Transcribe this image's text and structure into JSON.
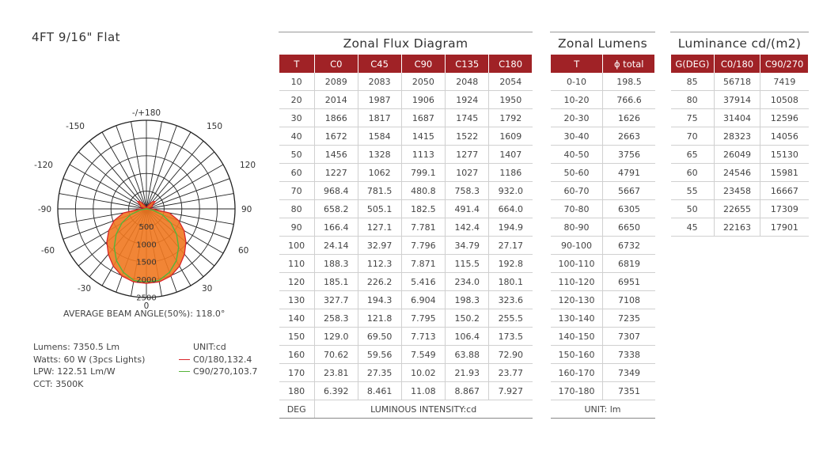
{
  "title": "4FT 9/16\" Flat",
  "chart_data": {
    "type": "polar",
    "ring_labels": [
      "500",
      "1000",
      "1500",
      "2000",
      "2500"
    ],
    "angle_labels": [
      "-/+180",
      "150",
      "-150",
      "120",
      "-120",
      "90",
      "-90",
      "60",
      "-60",
      "30",
      "-30",
      "0"
    ],
    "series": [
      {
        "name": "C0/180,132.4",
        "color": "#d9262b",
        "fill": "#f07820",
        "angles": [
          0,
          10,
          20,
          30,
          40,
          50,
          60,
          70,
          80,
          90,
          100,
          110,
          120,
          130,
          140,
          150,
          160,
          170,
          180
        ],
        "values": [
          2100,
          2089,
          2014,
          1866,
          1672,
          1456,
          1227,
          968.4,
          658.2,
          166.4,
          24.14,
          188.3,
          185.1,
          327.7,
          258.3,
          129.0,
          70.62,
          23.81,
          6.392
        ]
      },
      {
        "name": "C90/270,103.7",
        "color": "#55b43a",
        "angles": [
          0,
          10,
          20,
          30,
          40,
          50,
          60,
          70,
          80,
          90,
          100,
          110,
          120,
          130,
          140,
          150,
          160,
          170,
          180
        ],
        "values": [
          2060,
          2050,
          1906,
          1687,
          1415,
          1113,
          799.1,
          480.8,
          182.5,
          7.781,
          7.796,
          7.871,
          5.416,
          6.904,
          7.795,
          7.713,
          7.549,
          10.02,
          11.08
        ]
      }
    ]
  },
  "beam_angle": "AVERAGE BEAM ANGLE(50%): 118.0°",
  "specs": [
    "Lumens: 7350.5 Lm",
    "Watts: 60 W (3pcs Lights)",
    "LPW: 122.51 Lm/W",
    "CCT: 3500K"
  ],
  "legend": {
    "unit": "UNIT:cd",
    "items": [
      {
        "label": "C0/180,132.4",
        "color": "#d9262b"
      },
      {
        "label": "C90/270,103.7",
        "color": "#55b43a"
      }
    ]
  },
  "zonal_flux": {
    "title": "Zonal Flux Diagram",
    "headers": [
      "T",
      "C0",
      "C45",
      "C90",
      "C135",
      "C180"
    ],
    "rows": [
      [
        "10",
        "2089",
        "2083",
        "2050",
        "2048",
        "2054"
      ],
      [
        "20",
        "2014",
        "1987",
        "1906",
        "1924",
        "1950"
      ],
      [
        "30",
        "1866",
        "1817",
        "1687",
        "1745",
        "1792"
      ],
      [
        "40",
        "1672",
        "1584",
        "1415",
        "1522",
        "1609"
      ],
      [
        "50",
        "1456",
        "1328",
        "1113",
        "1277",
        "1407"
      ],
      [
        "60",
        "1227",
        "1062",
        "799.1",
        "1027",
        "1186"
      ],
      [
        "70",
        "968.4",
        "781.5",
        "480.8",
        "758.3",
        "932.0"
      ],
      [
        "80",
        "658.2",
        "505.1",
        "182.5",
        "491.4",
        "664.0"
      ],
      [
        "90",
        "166.4",
        "127.1",
        "7.781",
        "142.4",
        "194.9"
      ],
      [
        "100",
        "24.14",
        "32.97",
        "7.796",
        "34.79",
        "27.17"
      ],
      [
        "110",
        "188.3",
        "112.3",
        "7.871",
        "115.5",
        "192.8"
      ],
      [
        "120",
        "185.1",
        "226.2",
        "5.416",
        "234.0",
        "180.1"
      ],
      [
        "130",
        "327.7",
        "194.3",
        "6.904",
        "198.3",
        "323.6"
      ],
      [
        "140",
        "258.3",
        "121.8",
        "7.795",
        "150.2",
        "255.5"
      ],
      [
        "150",
        "129.0",
        "69.50",
        "7.713",
        "106.4",
        "173.5"
      ],
      [
        "160",
        "70.62",
        "59.56",
        "7.549",
        "63.88",
        "72.90"
      ],
      [
        "170",
        "23.81",
        "27.35",
        "10.02",
        "21.93",
        "23.77"
      ],
      [
        "180",
        "6.392",
        "8.461",
        "11.08",
        "8.867",
        "7.927"
      ]
    ],
    "footer_left": "DEG",
    "footer_right": "LUMINOUS INTENSITY:cd"
  },
  "zonal_lumens": {
    "title": "Zonal Lumens",
    "headers": [
      "T",
      "ϕ total"
    ],
    "rows": [
      [
        "0-10",
        "198.5"
      ],
      [
        "10-20",
        "766.6"
      ],
      [
        "20-30",
        "1626"
      ],
      [
        "30-40",
        "2663"
      ],
      [
        "40-50",
        "3756"
      ],
      [
        "50-60",
        "4791"
      ],
      [
        "60-70",
        "5667"
      ],
      [
        "70-80",
        "6305"
      ],
      [
        "80-90",
        "6650"
      ],
      [
        "90-100",
        "6732"
      ],
      [
        "100-110",
        "6819"
      ],
      [
        "110-120",
        "6951"
      ],
      [
        "120-130",
        "7108"
      ],
      [
        "130-140",
        "7235"
      ],
      [
        "140-150",
        "7307"
      ],
      [
        "150-160",
        "7338"
      ],
      [
        "160-170",
        "7349"
      ],
      [
        "170-180",
        "7351"
      ]
    ],
    "footer": "UNIT: lm"
  },
  "luminance": {
    "title": "Luminance cd/(m2)",
    "headers": [
      "G(DEG)",
      "C0/180",
      "C90/270"
    ],
    "rows": [
      [
        "85",
        "56718",
        "7419"
      ],
      [
        "80",
        "37914",
        "10508"
      ],
      [
        "75",
        "31404",
        "12596"
      ],
      [
        "70",
        "28323",
        "14056"
      ],
      [
        "65",
        "26049",
        "15130"
      ],
      [
        "60",
        "24546",
        "15981"
      ],
      [
        "55",
        "23458",
        "16667"
      ],
      [
        "50",
        "22655",
        "17309"
      ],
      [
        "45",
        "22163",
        "17901"
      ]
    ]
  }
}
